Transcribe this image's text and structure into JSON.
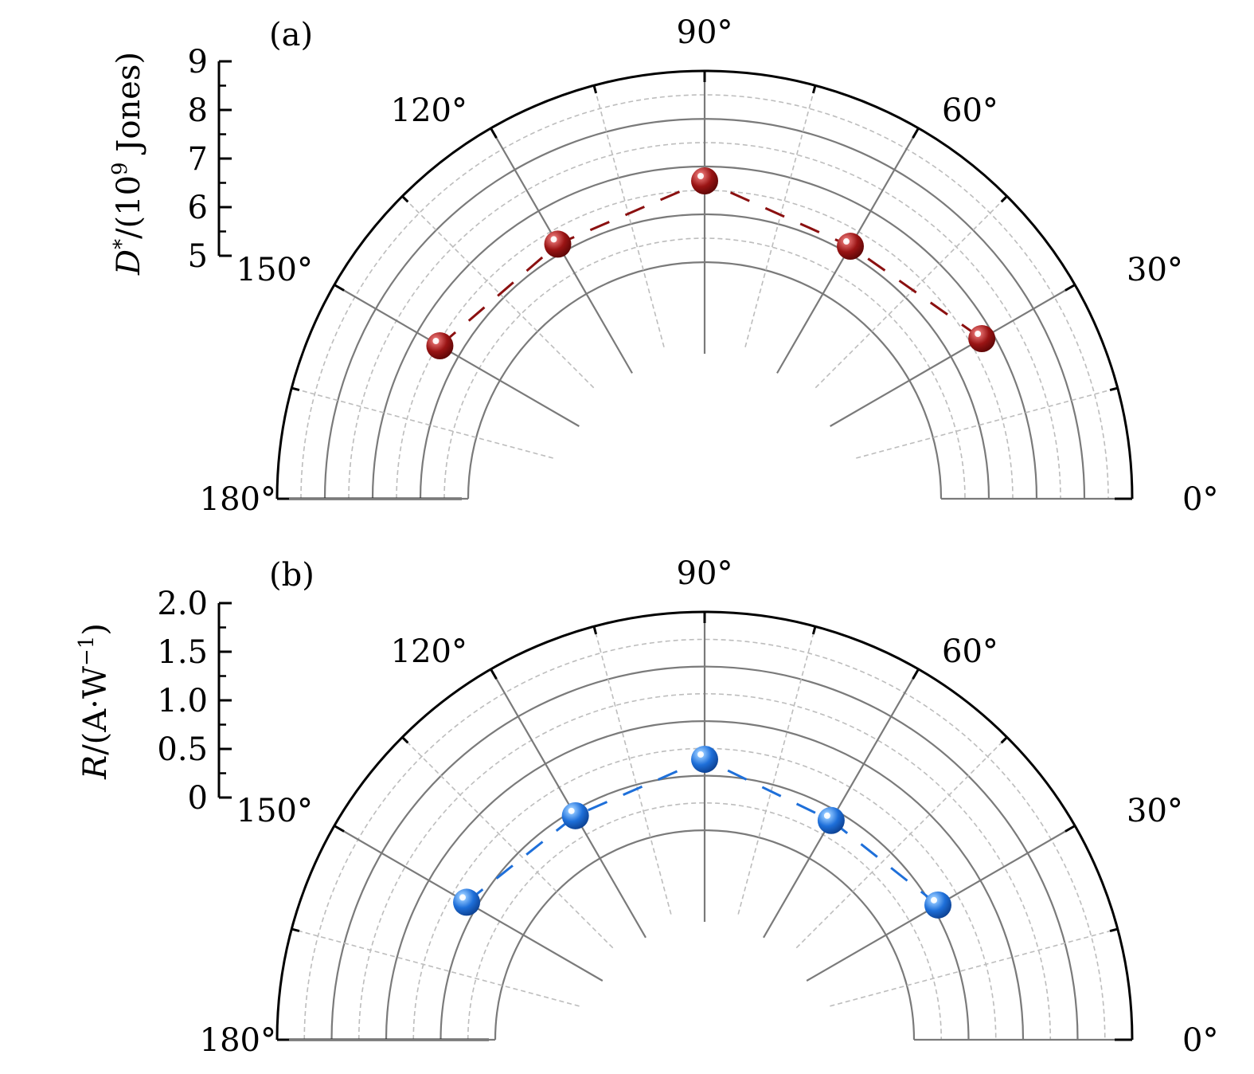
{
  "chart_data": [
    {
      "type": "scatter",
      "polar": true,
      "panel_label": "(a)",
      "ylabel": "D*/(10⁹ Jones)",
      "ylabel_parts": {
        "var": "D",
        "sup": "*",
        "mid": "/(10",
        "exp": "9",
        "end": " Jones)"
      },
      "angle_ticks": [
        "0°",
        "30°",
        "60°",
        "90°",
        "120°",
        "150°",
        "180°"
      ],
      "radial_ticks": [
        "5",
        "6",
        "7",
        "8",
        "9"
      ],
      "rlim": [
        5,
        9
      ],
      "angle_range_deg": [
        0,
        180
      ],
      "angles_deg": [
        30,
        60,
        90,
        120,
        150
      ],
      "values": [
        6.75,
        6.15,
        6.7,
        6.2,
        6.45
      ],
      "color": "#8b1010",
      "line_style": "dashed",
      "grid": true
    },
    {
      "type": "scatter",
      "polar": true,
      "panel_label": "(b)",
      "ylabel": "R/(A·W−¹)",
      "ylabel_parts": {
        "var": "R",
        "mid": "/(A·W",
        "exp": "−1",
        "end": ")"
      },
      "angle_ticks": [
        "0°",
        "30°",
        "60°",
        "90°",
        "120°",
        "150°",
        "180°"
      ],
      "radial_ticks": [
        "0",
        "0.5",
        "1.0",
        "1.5",
        "2.0"
      ],
      "rlim": [
        0,
        2.0
      ],
      "angle_range_deg": [
        0,
        180
      ],
      "angles_deg": [
        30,
        60,
        90,
        120,
        150
      ],
      "values": [
        0.55,
        0.4,
        0.65,
        0.45,
        0.6
      ],
      "color": "#1e6fd9",
      "line_style": "dashed",
      "grid": true
    }
  ]
}
